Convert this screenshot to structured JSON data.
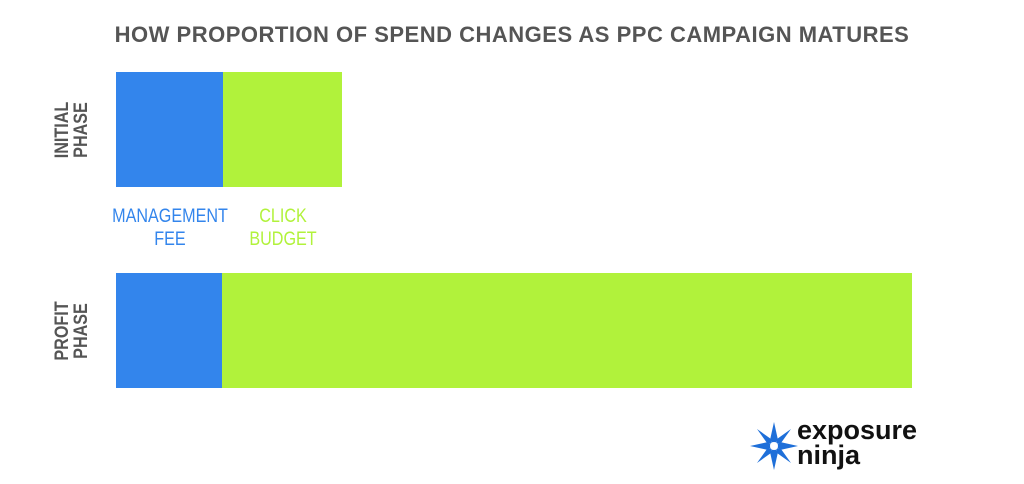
{
  "chart_data": {
    "type": "stacked-bar-horizontal",
    "title": "HOW PROPORTION OF SPEND CHANGES AS PPC CAMPAIGN MATURES",
    "categories": [
      "INITIAL PHASE",
      "PROFIT PHASE"
    ],
    "series": [
      {
        "name": "MANAGEMENT FEE",
        "color": "#3385ec",
        "values": [
          107,
          106
        ]
      },
      {
        "name": "CLICK BUDGET",
        "color": "#b1f23b",
        "values": [
          119,
          690
        ]
      }
    ]
  },
  "logo": "exposure ninja"
}
